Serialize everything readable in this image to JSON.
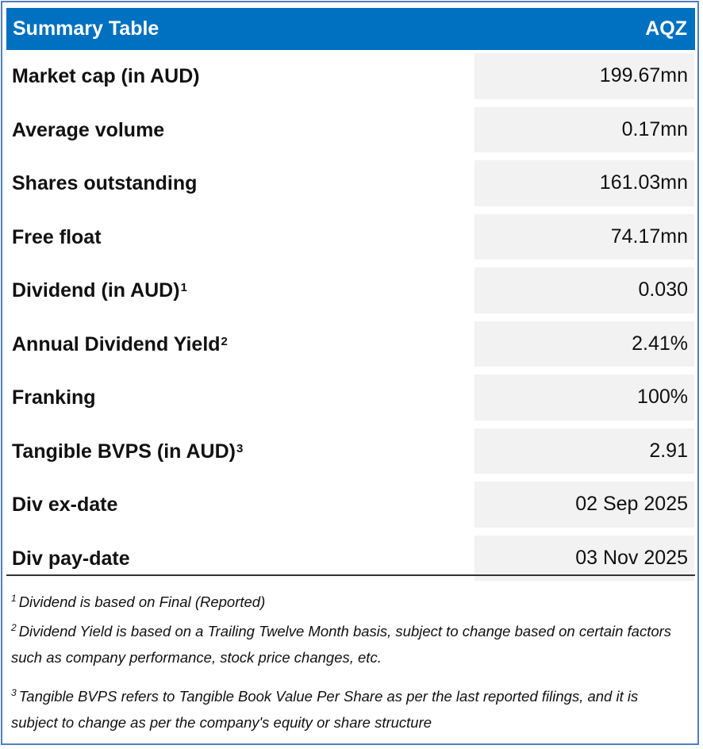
{
  "header": {
    "title": "Summary Table",
    "ticker": "AQZ"
  },
  "rows": [
    {
      "label": "Market cap (in AUD)",
      "sup": "",
      "value": "199.67mn"
    },
    {
      "label": "Average volume",
      "sup": "",
      "value": "0.17mn"
    },
    {
      "label": "Shares outstanding",
      "sup": "",
      "value": "161.03mn"
    },
    {
      "label": "Free float",
      "sup": "",
      "value": "74.17mn"
    },
    {
      "label": "Dividend (in AUD)",
      "sup": "1",
      "value": "0.030"
    },
    {
      "label": "Annual Dividend Yield",
      "sup": "2",
      "value": "2.41%"
    },
    {
      "label": "Franking",
      "sup": "",
      "value": "100%"
    },
    {
      "label": "Tangible BVPS (in AUD)",
      "sup": "3",
      "value": "2.91"
    },
    {
      "label": "Div ex-date",
      "sup": "",
      "value": "02 Sep 2025"
    },
    {
      "label": "Div pay-date",
      "sup": "",
      "value": "03 Nov 2025"
    }
  ],
  "footnotes": [
    {
      "num": "1",
      "text": "Dividend is based on Final (Reported)"
    },
    {
      "num": "2",
      "text": "Dividend Yield is based on a Trailing Twelve Month basis, subject to change based on certain factors such as company performance, stock price changes, etc."
    },
    {
      "num": "3",
      "text": "Tangible BVPS refers to Tangible Book Value Per Share as per the last reported filings, and it is subject to change as per the company's equity or share structure"
    }
  ]
}
